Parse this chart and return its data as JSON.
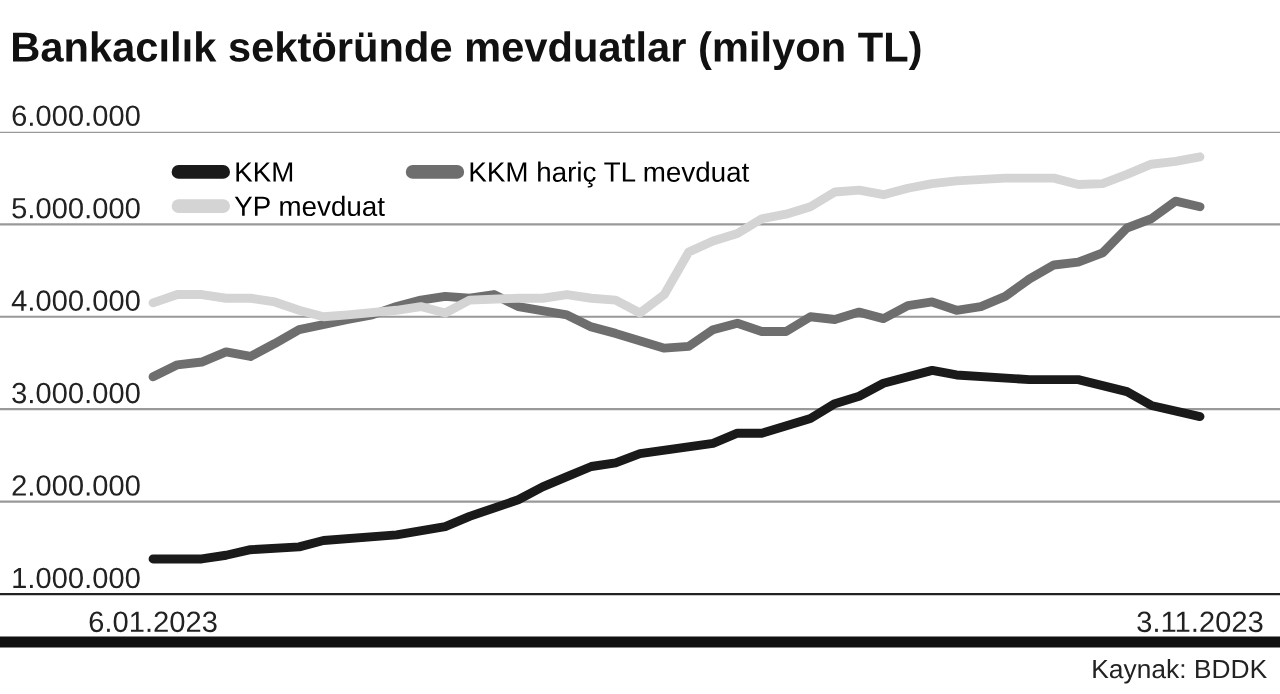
{
  "chart_data": {
    "type": "line",
    "title": "Bankacılık sektöründe mevduatlar (milyon TL)",
    "xlim": [
      "2022-11-23",
      "2023-11-26"
    ],
    "xticks": [
      {
        "value": "2023-01-06",
        "label": "6.01.2023"
      },
      {
        "value": "2023-11-03",
        "label": "3.11.2023"
      }
    ],
    "ylim": [
      1000000,
      6000000
    ],
    "yticks": [
      {
        "value": 1000000,
        "label": "1.000.000"
      },
      {
        "value": 2000000,
        "label": "2.000.000"
      },
      {
        "value": 3000000,
        "label": "3.000.000"
      },
      {
        "value": 4000000,
        "label": "4.000.000"
      },
      {
        "value": 5000000,
        "label": "5.000.000"
      },
      {
        "value": 6000000,
        "label": "6.000.000"
      }
    ],
    "grid": "y",
    "legend": "top left",
    "line_style": "solid",
    "annotations": [
      "Kaynak: BDDK"
    ],
    "series": [
      {
        "name": "KKM",
        "color": "#1a1a1a",
        "x": [
          "2023-01-06",
          "2023-01-20",
          "2023-01-27",
          "2023-02-03",
          "2023-02-17",
          "2023-02-24",
          "2023-03-17",
          "2023-03-31",
          "2023-04-07",
          "2023-04-21",
          "2023-04-28",
          "2023-05-05",
          "2023-05-12",
          "2023-05-19",
          "2023-05-26",
          "2023-06-16",
          "2023-06-23",
          "2023-06-30",
          "2023-07-14",
          "2023-07-21",
          "2023-07-28",
          "2023-08-04",
          "2023-08-18",
          "2023-08-25",
          "2023-09-15",
          "2023-09-29",
          "2023-10-13",
          "2023-10-20",
          "2023-11-03"
        ],
        "values": [
          1380000,
          1380000,
          1420000,
          1480000,
          1510000,
          1580000,
          1640000,
          1730000,
          1840000,
          2020000,
          2160000,
          2270000,
          2380000,
          2420000,
          2520000,
          2630000,
          2740000,
          2740000,
          2900000,
          3060000,
          3140000,
          3280000,
          3420000,
          3370000,
          3320000,
          3320000,
          3190000,
          3040000,
          2920000
        ]
      },
      {
        "name": "KKM hariç TL mevduat",
        "color": "#6e6e6e",
        "x": [
          "2023-01-06",
          "2023-01-13",
          "2023-01-20",
          "2023-01-27",
          "2023-02-03",
          "2023-02-10",
          "2023-02-17",
          "2023-03-03",
          "2023-03-10",
          "2023-03-17",
          "2023-03-24",
          "2023-03-31",
          "2023-04-07",
          "2023-04-14",
          "2023-04-21",
          "2023-05-05",
          "2023-05-12",
          "2023-05-19",
          "2023-06-02",
          "2023-06-09",
          "2023-06-16",
          "2023-06-23",
          "2023-06-30",
          "2023-07-07",
          "2023-07-14",
          "2023-07-21",
          "2023-07-28",
          "2023-08-04",
          "2023-08-11",
          "2023-08-18",
          "2023-08-25",
          "2023-09-01",
          "2023-09-08",
          "2023-09-15",
          "2023-09-22",
          "2023-09-29",
          "2023-10-06",
          "2023-10-13",
          "2023-10-20",
          "2023-10-27",
          "2023-11-03"
        ],
        "values": [
          3350000,
          3480000,
          3510000,
          3620000,
          3570000,
          3710000,
          3860000,
          3970000,
          4020000,
          4110000,
          4180000,
          4220000,
          4200000,
          4240000,
          4110000,
          4020000,
          3890000,
          3820000,
          3660000,
          3680000,
          3860000,
          3930000,
          3840000,
          3840000,
          4000000,
          3970000,
          4050000,
          3980000,
          4120000,
          4160000,
          4070000,
          4110000,
          4220000,
          4410000,
          4560000,
          4590000,
          4690000,
          4960000,
          5060000,
          5250000,
          5190000
        ]
      },
      {
        "name": "YP mevduat",
        "color": "#d4d4d4",
        "x": [
          "2023-01-06",
          "2023-01-13",
          "2023-01-20",
          "2023-01-27",
          "2023-02-03",
          "2023-02-10",
          "2023-02-17",
          "2023-02-24",
          "2023-03-03",
          "2023-03-17",
          "2023-03-24",
          "2023-03-31",
          "2023-04-07",
          "2023-04-21",
          "2023-04-28",
          "2023-05-05",
          "2023-05-12",
          "2023-05-19",
          "2023-05-26",
          "2023-06-02",
          "2023-06-09",
          "2023-06-16",
          "2023-06-23",
          "2023-06-30",
          "2023-07-07",
          "2023-07-14",
          "2023-07-21",
          "2023-07-28",
          "2023-08-04",
          "2023-08-11",
          "2023-08-18",
          "2023-08-25",
          "2023-09-08",
          "2023-09-22",
          "2023-09-29",
          "2023-10-06",
          "2023-10-13",
          "2023-10-20",
          "2023-10-27",
          "2023-11-03"
        ],
        "values": [
          4150000,
          4240000,
          4240000,
          4200000,
          4200000,
          4160000,
          4070000,
          4000000,
          4020000,
          4070000,
          4110000,
          4040000,
          4180000,
          4200000,
          4200000,
          4240000,
          4200000,
          4180000,
          4040000,
          4240000,
          4700000,
          4820000,
          4900000,
          5060000,
          5110000,
          5190000,
          5350000,
          5370000,
          5320000,
          5390000,
          5440000,
          5470000,
          5500000,
          5500000,
          5430000,
          5440000,
          5540000,
          5650000,
          5680000,
          5730000
        ]
      }
    ]
  }
}
